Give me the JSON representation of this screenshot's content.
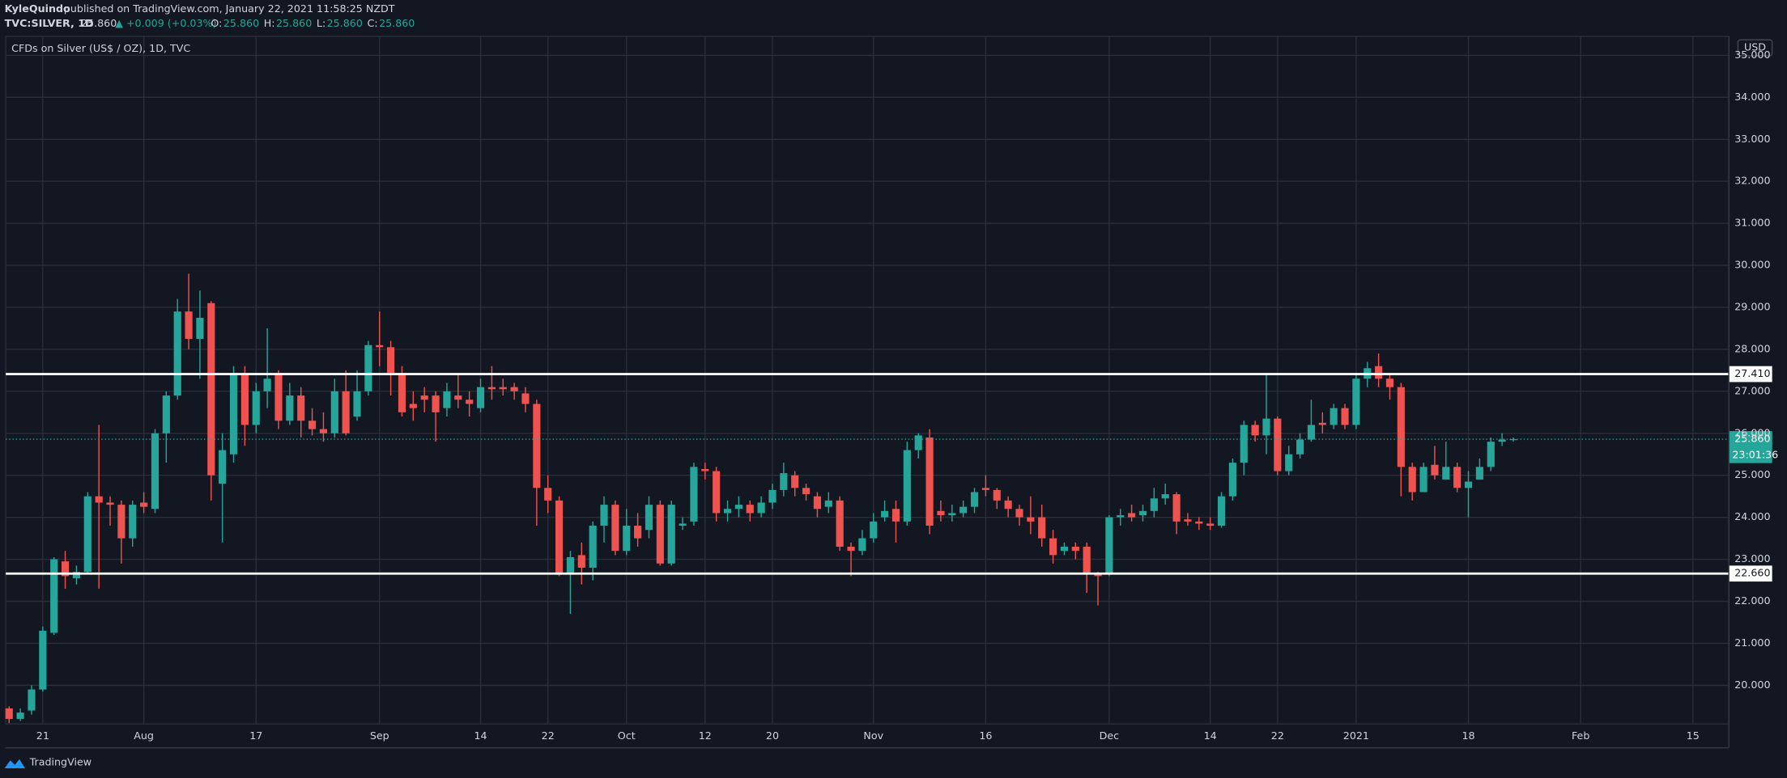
{
  "header": {
    "author": "KyleQuindo",
    "published": "published on TradingView.com, January 22, 2021 11:58:25 NZDT",
    "symbol": "TVC:SILVER, 1D",
    "last": "25.860",
    "change": "▲ +0.009 (+0.03%)",
    "ohlc": [
      {
        "label": "O:",
        "value": "25.860"
      },
      {
        "label": "H:",
        "value": "25.860"
      },
      {
        "label": "L:",
        "value": "25.860"
      },
      {
        "label": "C:",
        "value": "25.860"
      }
    ]
  },
  "footer": {
    "brand": "TradingView"
  },
  "chart_data": {
    "type": "candlestick",
    "title": "CFDs on Silver (US$ / OZ), 1D, TVC",
    "y_axis_label": "USD",
    "up_color": "#26a69a",
    "down_color": "#ef5350",
    "grid": true,
    "open": [
      19.45,
      19.2,
      19.4,
      19.9,
      21.25,
      22.95,
      22.55,
      22.7,
      24.5,
      24.35,
      24.3,
      23.5,
      24.35,
      24.2,
      26.0,
      26.9,
      28.9,
      28.25,
      29.1,
      24.8,
      25.5,
      27.4,
      26.2,
      27.0,
      27.4,
      26.3,
      26.9,
      26.3,
      26.1,
      26.0,
      27.0,
      26.4,
      27.0,
      28.1,
      28.05,
      27.4,
      26.7,
      26.9,
      26.9,
      26.6,
      26.9,
      26.8,
      26.6,
      27.1,
      27.1,
      27.1,
      26.95,
      26.7,
      24.7,
      24.4,
      22.65,
      23.1,
      22.8,
      23.8,
      24.3,
      23.2,
      23.8,
      23.7,
      24.3,
      22.9,
      23.8,
      23.9,
      25.15,
      25.1,
      24.1,
      24.2,
      24.3,
      24.1,
      24.35,
      24.65,
      25.0,
      24.7,
      24.5,
      24.25,
      24.4,
      23.3,
      23.2,
      23.5,
      24.0,
      24.2,
      23.9,
      25.6,
      25.9,
      24.15,
      24.05,
      24.1,
      24.25,
      24.7,
      24.65,
      24.4,
      24.2,
      24.0,
      24.0,
      23.5,
      23.2,
      23.3,
      23.3,
      22.65,
      22.65,
      24.0,
      24.1,
      24.05,
      24.15,
      24.45,
      24.55,
      23.95,
      23.9,
      23.85,
      23.8,
      24.5,
      25.3,
      26.2,
      25.95,
      26.35,
      25.1,
      25.5,
      25.85,
      26.25,
      26.2,
      26.6,
      26.2,
      27.3,
      27.6,
      27.3,
      27.1,
      25.2,
      24.6,
      25.25,
      24.9,
      25.2,
      24.7,
      24.9,
      25.2,
      25.8,
      25.85
    ],
    "high": [
      19.5,
      19.45,
      20.0,
      21.4,
      23.05,
      23.2,
      22.85,
      24.6,
      26.2,
      24.5,
      24.4,
      24.4,
      24.6,
      26.1,
      27.0,
      29.2,
      29.8,
      29.4,
      29.15,
      26.0,
      27.6,
      27.6,
      27.2,
      28.5,
      27.5,
      27.2,
      27.1,
      26.6,
      26.5,
      27.3,
      27.5,
      27.5,
      28.2,
      28.9,
      28.2,
      27.6,
      27.0,
      27.1,
      27.0,
      27.2,
      27.4,
      27.0,
      27.3,
      27.6,
      27.3,
      27.2,
      27.1,
      26.8,
      25.0,
      24.5,
      23.2,
      23.4,
      23.9,
      24.5,
      24.4,
      24.2,
      24.1,
      24.5,
      24.4,
      24.4,
      24.0,
      25.3,
      25.3,
      25.2,
      24.4,
      24.5,
      24.4,
      24.5,
      24.8,
      25.3,
      25.1,
      24.8,
      24.6,
      24.6,
      24.5,
      23.4,
      23.7,
      24.1,
      24.4,
      24.4,
      25.8,
      26.0,
      26.1,
      24.4,
      24.3,
      24.4,
      24.7,
      25.0,
      24.7,
      24.5,
      24.3,
      24.5,
      24.3,
      23.7,
      23.4,
      23.4,
      23.4,
      22.7,
      24.05,
      24.2,
      24.3,
      24.3,
      24.7,
      24.8,
      24.6,
      24.1,
      24.0,
      24.0,
      24.6,
      25.4,
      26.3,
      26.3,
      27.4,
      26.4,
      25.7,
      26.0,
      26.8,
      26.5,
      26.7,
      26.7,
      27.4,
      27.7,
      27.9,
      27.4,
      27.2,
      25.3,
      25.3,
      25.7,
      25.8,
      25.3,
      25.1,
      25.4,
      25.9,
      26.0,
      25.9
    ],
    "low": [
      19.1,
      19.15,
      19.3,
      19.85,
      21.2,
      22.3,
      22.4,
      22.65,
      22.3,
      23.8,
      22.9,
      23.3,
      24.1,
      24.1,
      25.3,
      26.8,
      28.0,
      27.3,
      24.4,
      23.4,
      25.3,
      25.7,
      26.0,
      26.6,
      26.1,
      26.2,
      25.9,
      25.95,
      25.8,
      25.9,
      25.95,
      26.3,
      26.9,
      27.6,
      26.9,
      26.4,
      26.3,
      26.5,
      25.8,
      26.4,
      26.6,
      26.4,
      26.5,
      26.8,
      26.9,
      26.8,
      26.5,
      23.8,
      24.1,
      22.6,
      21.7,
      22.4,
      22.5,
      23.4,
      23.1,
      23.1,
      23.3,
      23.5,
      22.85,
      22.85,
      23.7,
      23.8,
      24.9,
      23.9,
      23.9,
      24.0,
      23.9,
      24.0,
      24.2,
      24.5,
      24.5,
      24.4,
      24.0,
      24.1,
      23.2,
      22.6,
      23.1,
      23.4,
      23.9,
      23.4,
      23.8,
      25.4,
      23.6,
      23.9,
      23.9,
      24.0,
      24.1,
      24.5,
      24.2,
      24.0,
      23.8,
      23.6,
      23.3,
      22.9,
      23.1,
      23.0,
      22.2,
      21.9,
      22.6,
      23.8,
      23.9,
      23.9,
      24.0,
      24.3,
      23.6,
      23.8,
      23.7,
      23.7,
      23.75,
      24.4,
      25.0,
      25.8,
      25.5,
      25.0,
      25.0,
      25.4,
      25.8,
      26.0,
      26.1,
      26.1,
      26.1,
      27.1,
      27.1,
      26.8,
      24.5,
      24.4,
      24.6,
      24.9,
      24.9,
      24.6,
      24.0,
      24.9,
      25.1,
      25.7,
      25.8
    ],
    "close": [
      19.2,
      19.35,
      19.9,
      21.3,
      23.0,
      22.6,
      22.7,
      24.5,
      24.35,
      24.3,
      23.5,
      24.3,
      24.25,
      26.0,
      26.9,
      28.9,
      28.25,
      28.75,
      25.0,
      25.6,
      27.4,
      26.2,
      27.0,
      27.3,
      26.3,
      26.9,
      26.3,
      26.1,
      26.0,
      27.0,
      26.0,
      27.0,
      28.1,
      28.05,
      27.4,
      26.5,
      26.6,
      26.8,
      26.5,
      27.0,
      26.8,
      26.7,
      27.1,
      27.05,
      27.05,
      27.0,
      26.7,
      24.7,
      24.4,
      22.65,
      23.05,
      22.8,
      23.8,
      24.3,
      23.2,
      23.8,
      23.5,
      24.3,
      22.9,
      24.3,
      23.85,
      25.2,
      25.1,
      24.1,
      24.2,
      24.3,
      24.1,
      24.35,
      24.65,
      25.05,
      24.7,
      24.55,
      24.2,
      24.4,
      23.3,
      23.2,
      23.5,
      23.9,
      24.15,
      23.9,
      25.6,
      25.95,
      23.8,
      24.05,
      24.1,
      24.25,
      24.6,
      24.65,
      24.4,
      24.2,
      24.0,
      23.9,
      23.5,
      23.1,
      23.3,
      23.2,
      22.65,
      22.6,
      24.0,
      24.05,
      24.0,
      24.15,
      24.45,
      24.55,
      23.9,
      23.9,
      23.85,
      23.8,
      24.5,
      25.3,
      26.2,
      25.95,
      26.35,
      25.1,
      25.5,
      25.85,
      26.2,
      26.2,
      26.6,
      26.2,
      27.3,
      27.55,
      27.3,
      27.1,
      25.2,
      24.6,
      25.2,
      25.0,
      25.2,
      24.7,
      24.85,
      25.2,
      25.8,
      25.85,
      25.86
    ],
    "xlim": [
      -0.3,
      153.2
    ],
    "xticks": [
      {
        "value": 3,
        "label": "21"
      },
      {
        "value": 12,
        "label": "Aug"
      },
      {
        "value": 22,
        "label": "17"
      },
      {
        "value": 33,
        "label": "Sep"
      },
      {
        "value": 42,
        "label": "14"
      },
      {
        "value": 48,
        "label": "22"
      },
      {
        "value": 55,
        "label": "Oct"
      },
      {
        "value": 62,
        "label": "12"
      },
      {
        "value": 68,
        "label": "20"
      },
      {
        "value": 77,
        "label": "Nov"
      },
      {
        "value": 87,
        "label": "16"
      },
      {
        "value": 98,
        "label": "Dec"
      },
      {
        "value": 107,
        "label": "14"
      },
      {
        "value": 113,
        "label": "22"
      },
      {
        "value": 120,
        "label": "2021"
      },
      {
        "value": 130,
        "label": "18"
      },
      {
        "value": 140,
        "label": "Feb"
      },
      {
        "value": 150,
        "label": "15"
      }
    ],
    "ylim": [
      19.08,
      35.45
    ],
    "yticks": [
      {
        "value": 20,
        "label": "20.000"
      },
      {
        "value": 21,
        "label": "21.000"
      },
      {
        "value": 22,
        "label": "22.000"
      },
      {
        "value": 23,
        "label": "23.000"
      },
      {
        "value": 24,
        "label": "24.000"
      },
      {
        "value": 25,
        "label": "25.000"
      },
      {
        "value": 26,
        "label": "26.000"
      },
      {
        "value": 27,
        "label": "27.000"
      },
      {
        "value": 28,
        "label": "28.000"
      },
      {
        "value": 29,
        "label": "29.000"
      },
      {
        "value": 30,
        "label": "30.000"
      },
      {
        "value": 31,
        "label": "31.000"
      },
      {
        "value": 32,
        "label": "32.000"
      },
      {
        "value": 33,
        "label": "33.000"
      },
      {
        "value": 34,
        "label": "34.000"
      },
      {
        "value": 35,
        "label": "35.000"
      }
    ],
    "levels": [
      {
        "value": 27.41,
        "label": "27.410"
      },
      {
        "value": 22.66,
        "label": "22.660"
      }
    ],
    "last_price": {
      "value": 25.86,
      "label": "25.860",
      "countdown": "23:01:36"
    }
  }
}
